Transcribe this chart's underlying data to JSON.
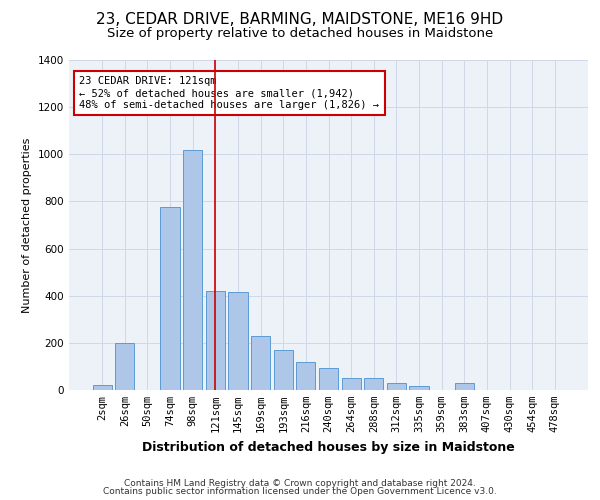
{
  "title": "23, CEDAR DRIVE, BARMING, MAIDSTONE, ME16 9HD",
  "subtitle": "Size of property relative to detached houses in Maidstone",
  "xlabel": "Distribution of detached houses by size in Maidstone",
  "ylabel": "Number of detached properties",
  "categories": [
    "2sqm",
    "26sqm",
    "50sqm",
    "74sqm",
    "98sqm",
    "121sqm",
    "145sqm",
    "169sqm",
    "193sqm",
    "216sqm",
    "240sqm",
    "264sqm",
    "288sqm",
    "312sqm",
    "335sqm",
    "359sqm",
    "383sqm",
    "407sqm",
    "430sqm",
    "454sqm",
    "478sqm"
  ],
  "values": [
    20,
    200,
    0,
    775,
    1020,
    420,
    415,
    230,
    170,
    120,
    95,
    50,
    50,
    28,
    18,
    0,
    28,
    0,
    0,
    0,
    0
  ],
  "bar_color": "#aec6e8",
  "bar_edge_color": "#5b9bd5",
  "grid_color": "#d0d8e8",
  "background_color": "#edf2f9",
  "red_line_index": 5,
  "annotation_text": "23 CEDAR DRIVE: 121sqm\n← 52% of detached houses are smaller (1,942)\n48% of semi-detached houses are larger (1,826) →",
  "annotation_box_color": "#ffffff",
  "annotation_box_edge": "#cc0000",
  "ylim": [
    0,
    1400
  ],
  "yticks": [
    0,
    200,
    400,
    600,
    800,
    1000,
    1200,
    1400
  ],
  "footer_line1": "Contains HM Land Registry data © Crown copyright and database right 2024.",
  "footer_line2": "Contains public sector information licensed under the Open Government Licence v3.0.",
  "title_fontsize": 11,
  "subtitle_fontsize": 9.5,
  "xlabel_fontsize": 9,
  "ylabel_fontsize": 8,
  "tick_fontsize": 7.5,
  "annotation_fontsize": 7.5,
  "footer_fontsize": 6.5
}
